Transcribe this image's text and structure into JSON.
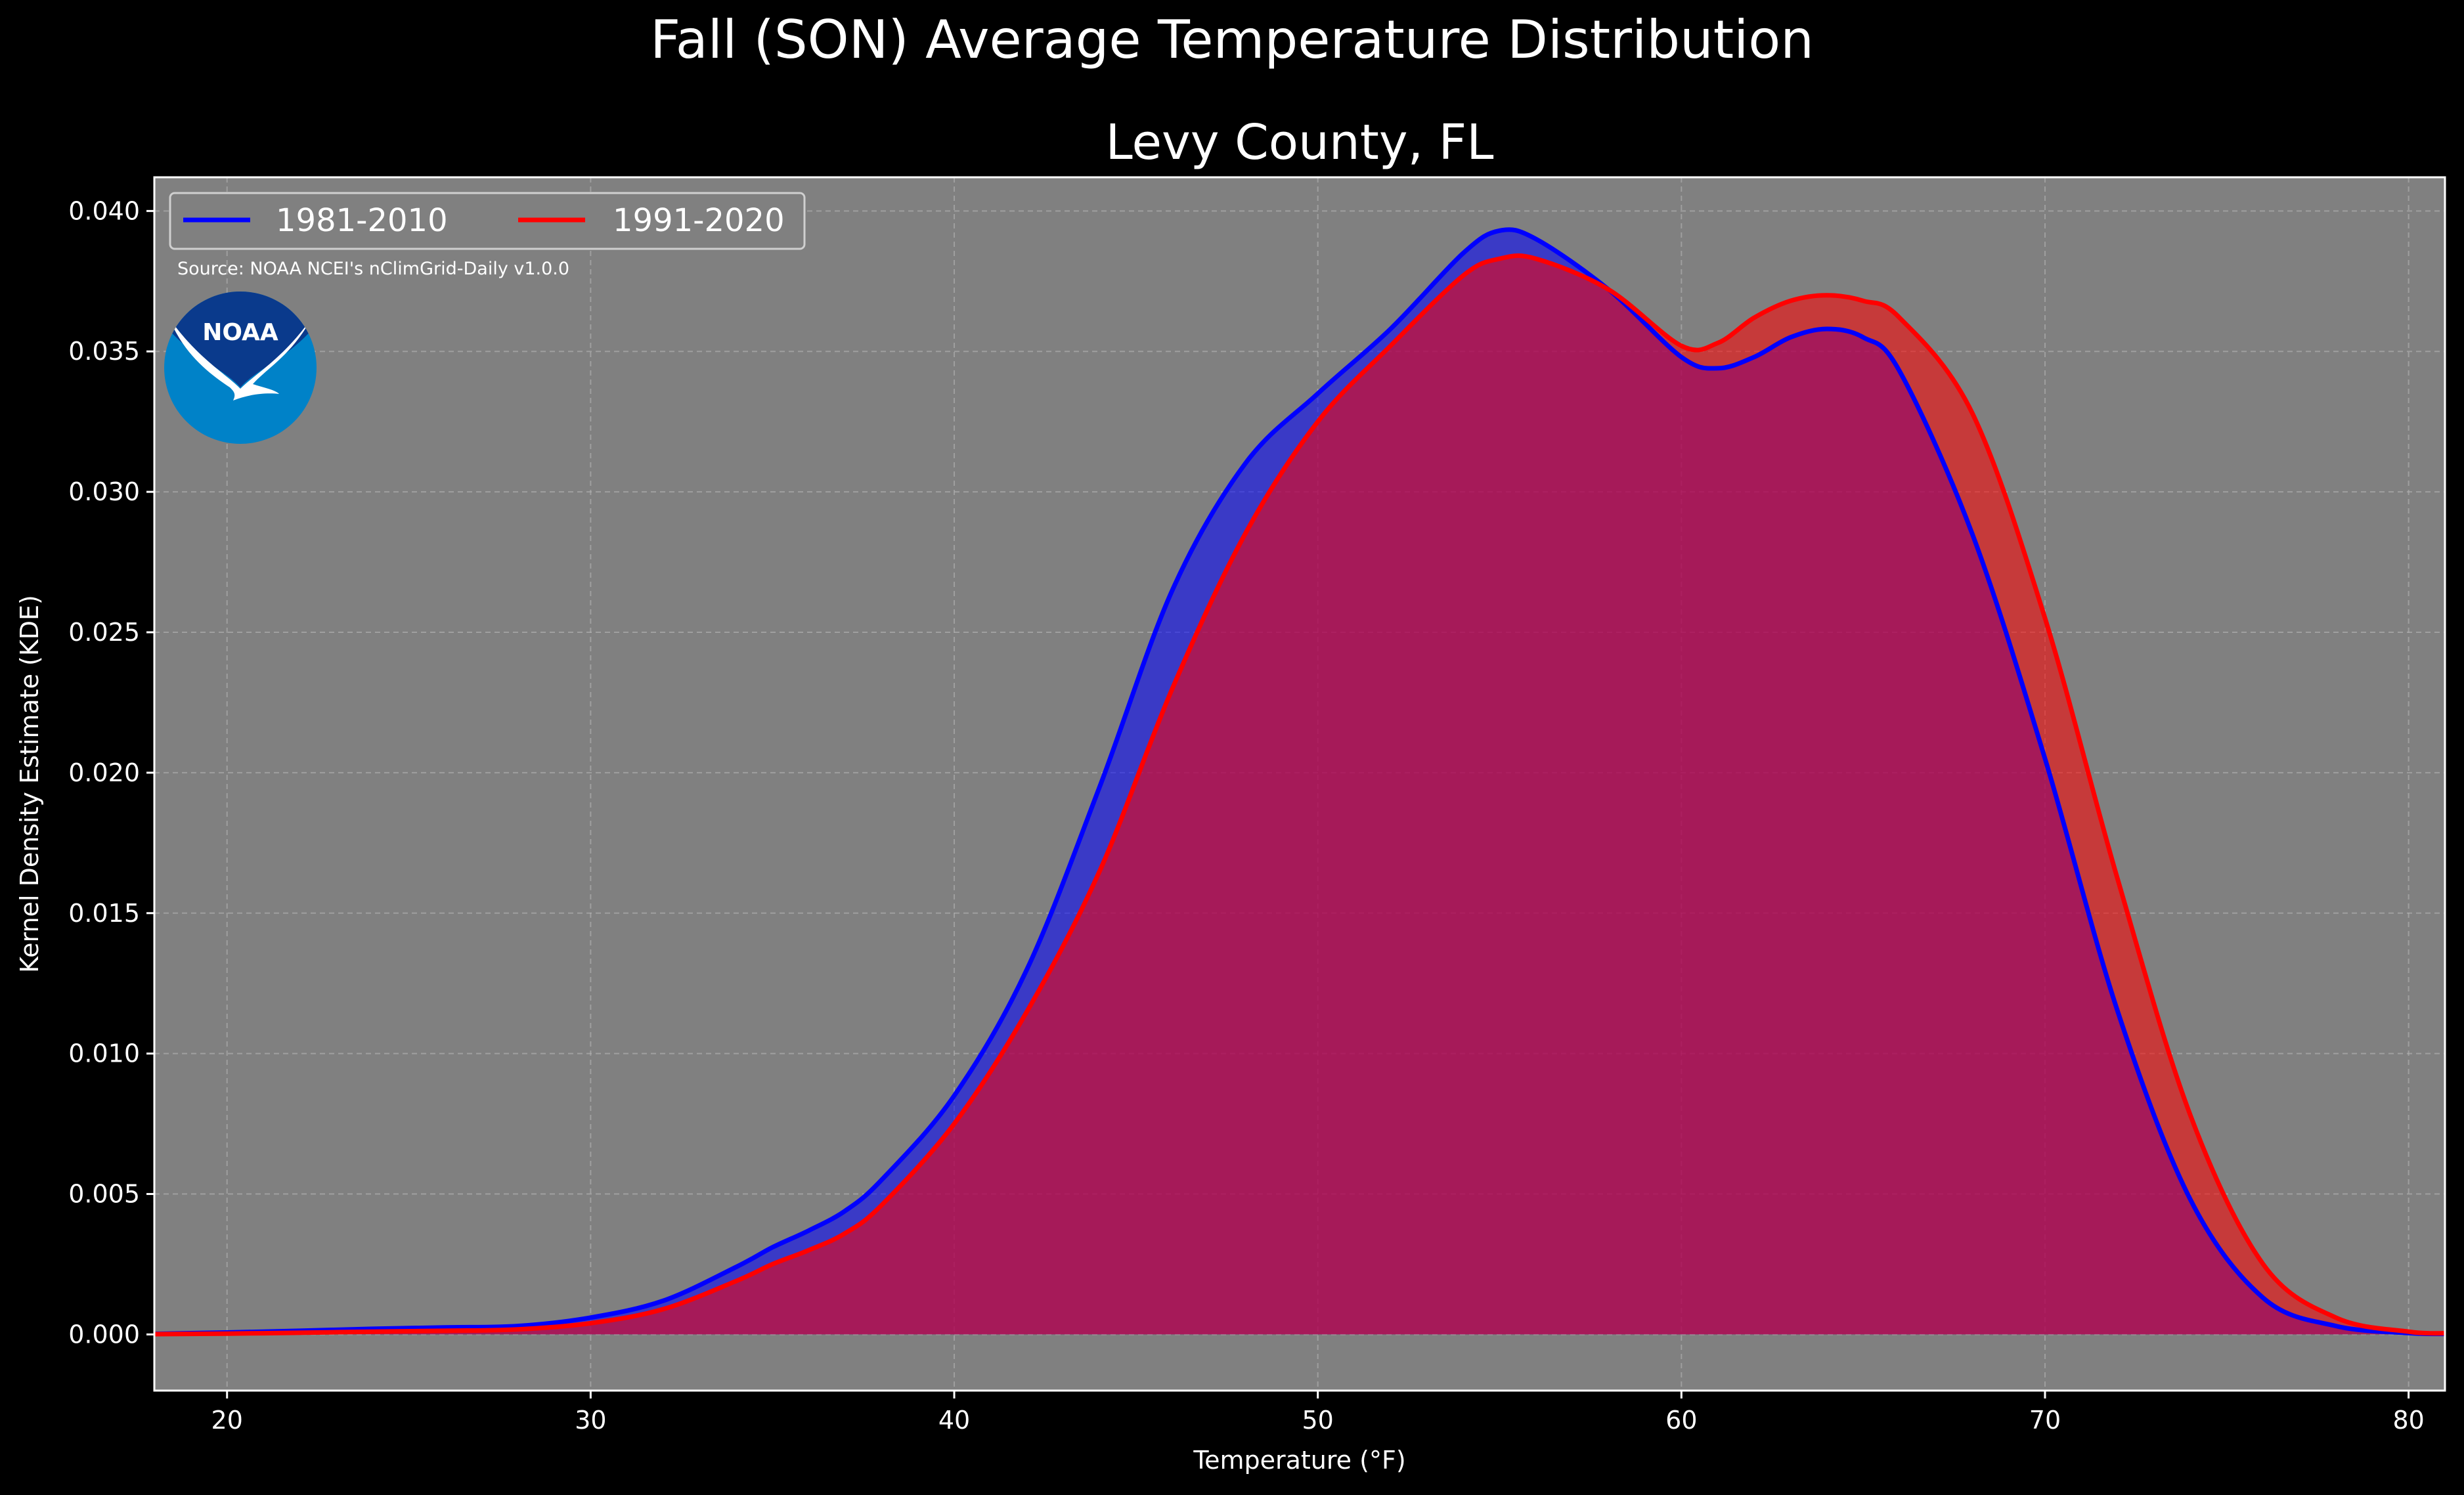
{
  "suptitle": "Fall (SON) Average Temperature Distribution",
  "source_note": "Source: NOAA NCEI's nClimGrid-Daily v1.0.0",
  "logo": {
    "text": "NOAA",
    "icon": "noaa-logo"
  },
  "colors": {
    "background": "#000000",
    "plot_bg": "#808080",
    "grid": "#b4b4b4",
    "series_1981": "#0000ff",
    "series_1991": "#ff0000",
    "logo_dark": "#0a3a8c",
    "logo_light": "#0082c8"
  },
  "chart_data": {
    "type": "area",
    "title": "Levy County, FL",
    "xlabel": "Temperature ($^\\circ$F)",
    "xlabel_display": "Temperature (°F)",
    "ylabel": "Kernel Density Estimate (KDE)",
    "xlim": [
      18,
      81
    ],
    "ylim": [
      -0.002,
      0.0412
    ],
    "xticks": [
      20,
      30,
      40,
      50,
      60,
      70,
      80
    ],
    "yticks": [
      0.0,
      0.005,
      0.01,
      0.015,
      0.02,
      0.025,
      0.03,
      0.035,
      0.04
    ],
    "ytick_labels": [
      "0.000",
      "0.005",
      "0.010",
      "0.015",
      "0.020",
      "0.025",
      "0.030",
      "0.035",
      "0.040"
    ],
    "grid": true,
    "legend_position": "top-left",
    "x": [
      18,
      20,
      22,
      24,
      26,
      28,
      30,
      32,
      34,
      35,
      36,
      37,
      38,
      40,
      42,
      44,
      46,
      48,
      50,
      52,
      54,
      55,
      56,
      58,
      60,
      61,
      62,
      63,
      64,
      65,
      66,
      68,
      70,
      72,
      74,
      76,
      78,
      80,
      81
    ],
    "series": [
      {
        "name": "1981-2010",
        "color": "#0000ff",
        "values": [
          2e-05,
          7e-05,
          0.00013,
          0.0002,
          0.00025,
          0.0003,
          0.0006,
          0.0012,
          0.0024,
          0.0031,
          0.0037,
          0.0044,
          0.0055,
          0.0085,
          0.013,
          0.0195,
          0.0265,
          0.031,
          0.0335,
          0.0358,
          0.0385,
          0.0393,
          0.039,
          0.0372,
          0.0348,
          0.0344,
          0.0348,
          0.0355,
          0.0358,
          0.0355,
          0.0343,
          0.0285,
          0.0205,
          0.0115,
          0.0048,
          0.0013,
          0.0003,
          5e-05,
          2e-05
        ]
      },
      {
        "name": "1991-2020",
        "color": "#ff0000",
        "values": [
          1e-05,
          3e-05,
          6e-05,
          0.0001,
          0.00013,
          0.00018,
          0.0004,
          0.0009,
          0.0019,
          0.0025,
          0.003,
          0.0036,
          0.0046,
          0.0075,
          0.0115,
          0.0165,
          0.023,
          0.0285,
          0.0325,
          0.0352,
          0.0377,
          0.0383,
          0.0383,
          0.0372,
          0.0352,
          0.0353,
          0.0362,
          0.0368,
          0.037,
          0.0368,
          0.0362,
          0.0328,
          0.0255,
          0.0162,
          0.0078,
          0.0025,
          0.0006,
          0.0001,
          4e-05
        ]
      }
    ]
  }
}
